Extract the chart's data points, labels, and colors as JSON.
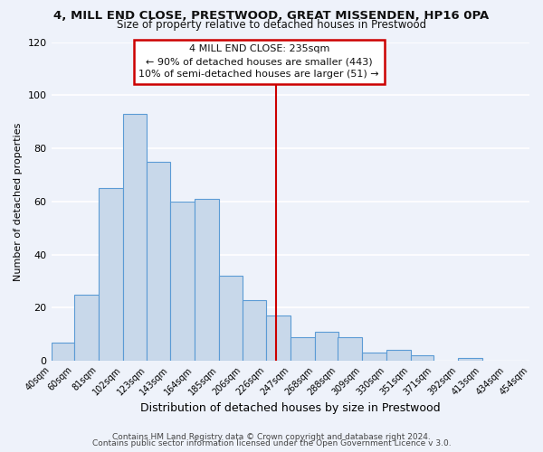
{
  "title1": "4, MILL END CLOSE, PRESTWOOD, GREAT MISSENDEN, HP16 0PA",
  "title2": "Size of property relative to detached houses in Prestwood",
  "xlabel": "Distribution of detached houses by size in Prestwood",
  "ylabel": "Number of detached properties",
  "bar_left_edges": [
    40,
    60,
    81,
    102,
    123,
    143,
    164,
    185,
    206,
    226,
    247,
    268,
    288,
    309,
    330,
    351,
    371,
    392,
    413,
    434
  ],
  "bar_widths": [
    20,
    21,
    21,
    21,
    20,
    21,
    21,
    21,
    20,
    21,
    21,
    21,
    21,
    21,
    21,
    20,
    21,
    21,
    21,
    20
  ],
  "bar_heights": [
    7,
    25,
    65,
    93,
    75,
    60,
    61,
    32,
    23,
    17,
    9,
    11,
    9,
    3,
    4,
    2,
    0,
    1,
    0,
    0
  ],
  "tick_labels": [
    "40sqm",
    "60sqm",
    "81sqm",
    "102sqm",
    "123sqm",
    "143sqm",
    "164sqm",
    "185sqm",
    "206sqm",
    "226sqm",
    "247sqm",
    "268sqm",
    "288sqm",
    "309sqm",
    "330sqm",
    "351sqm",
    "371sqm",
    "392sqm",
    "413sqm",
    "434sqm",
    "454sqm"
  ],
  "tick_positions": [
    40,
    60,
    81,
    102,
    123,
    143,
    164,
    185,
    206,
    226,
    247,
    268,
    288,
    309,
    330,
    351,
    371,
    392,
    413,
    434,
    454
  ],
  "bar_color": "#c8d8ea",
  "bar_edge_color": "#5b9bd5",
  "vline_x": 235,
  "vline_color": "#cc0000",
  "ylim": [
    0,
    120
  ],
  "yticks": [
    0,
    20,
    40,
    60,
    80,
    100,
    120
  ],
  "annotation_title": "4 MILL END CLOSE: 235sqm",
  "annotation_line1": "← 90% of detached houses are smaller (443)",
  "annotation_line2": "10% of semi-detached houses are larger (51) →",
  "annotation_box_color": "#cc0000",
  "footer1": "Contains HM Land Registry data © Crown copyright and database right 2024.",
  "footer2": "Contains public sector information licensed under the Open Government Licence v 3.0.",
  "background_color": "#eef2fa",
  "grid_color": "#ffffff",
  "title1_fontsize": 9.5,
  "title2_fontsize": 8.5,
  "ylabel_fontsize": 8,
  "xlabel_fontsize": 9,
  "tick_fontsize": 7,
  "footer_fontsize": 6.5
}
